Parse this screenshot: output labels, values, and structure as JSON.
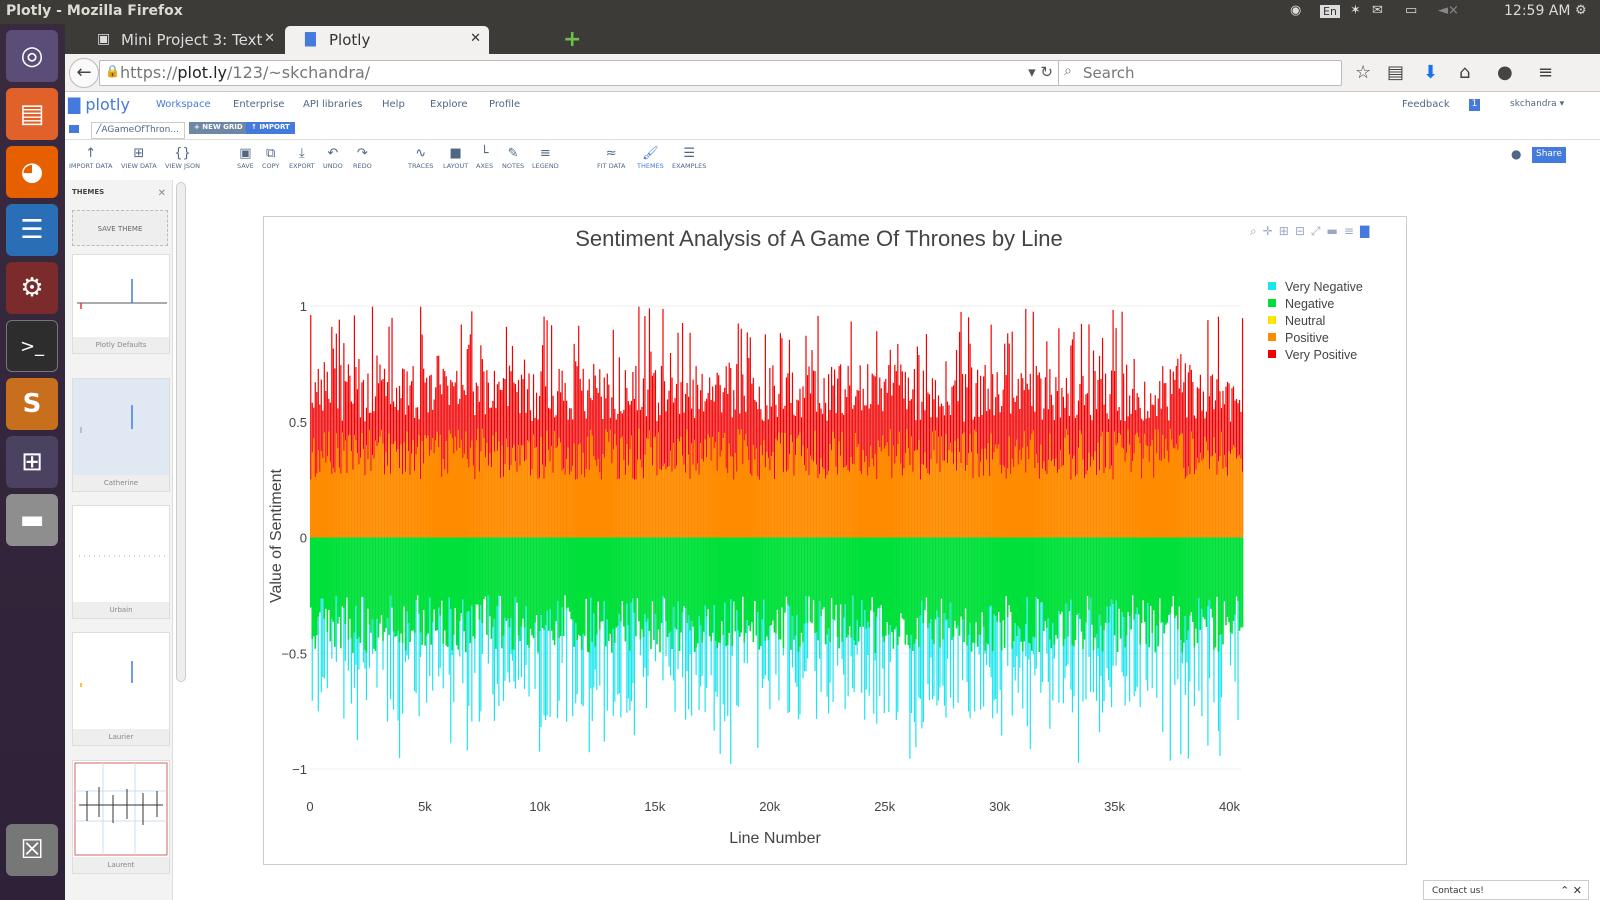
{
  "system": {
    "window_title": "Plotly - Mozilla Firefox",
    "keyboard_layout": "En",
    "clock": "12:59 AM"
  },
  "browser": {
    "tabs": [
      {
        "label": "Mini Project 3: Text ...",
        "active": false
      },
      {
        "label": "Plotly",
        "active": true
      }
    ],
    "url_prefix": "https://",
    "url_host": "plot.ly",
    "url_path": "/123/~skchandra/",
    "search_placeholder": "Search"
  },
  "plotly": {
    "logo": "plotly",
    "nav": [
      "Workspace",
      "Enterprise",
      "API libraries",
      "Help",
      "Explore",
      "Profile"
    ],
    "feedback": "Feedback",
    "notifications": "1",
    "user": "skchandra",
    "grid_tab": "AGameOfThron...",
    "new_grid": "+ NEW GRID",
    "import": "IMPORT",
    "share": "Share",
    "contact": "Contact us!",
    "tools_left": [
      "IMPORT DATA",
      "VIEW DATA",
      "VIEW JSON"
    ],
    "tools_mid": [
      "SAVE",
      "COPY",
      "EXPORT",
      "UNDO",
      "REDO"
    ],
    "tools_style": [
      "TRACES",
      "LAYOUT",
      "AXES",
      "NOTES",
      "LEGEND"
    ],
    "tools_right": [
      "FIT DATA",
      "THEMES",
      "EXAMPLES"
    ]
  },
  "themes_panel": {
    "title": "THEMES",
    "save_theme": "SAVE THEME",
    "themes": [
      "Plotly Defaults",
      "Catherine",
      "Urbain",
      "Laurier",
      "Laurent"
    ]
  },
  "colors": {
    "very_negative": "#1be6ee",
    "negative": "#00e03a",
    "neutral": "#ffe600",
    "positive": "#ff8c00",
    "very_positive": "#f20000",
    "accent": "#447adb"
  },
  "chart_data": {
    "type": "bar",
    "title": "Sentiment Analysis of A Game Of Thrones by Line",
    "xlabel": "Line Number",
    "ylabel": "Value of Sentiment",
    "xlim": [
      0,
      40500
    ],
    "ylim": [
      -1,
      1
    ],
    "x_ticks": [
      "0",
      "5k",
      "10k",
      "15k",
      "20k",
      "25k",
      "30k",
      "35k",
      "40k"
    ],
    "y_ticks": [
      "1",
      "0.5",
      "0",
      "−0.5",
      "−1"
    ],
    "legend_position": "top-right",
    "grid": true,
    "series": [
      {
        "name": "Very Negative",
        "value_range": [
          -1,
          -0.5
        ]
      },
      {
        "name": "Negative",
        "value_range": [
          -0.5,
          0
        ]
      },
      {
        "name": "Neutral",
        "value_range": [
          0,
          0
        ]
      },
      {
        "name": "Positive",
        "value_range": [
          0,
          0.5
        ]
      },
      {
        "name": "Very Positive",
        "value_range": [
          0.5,
          1
        ]
      }
    ]
  }
}
